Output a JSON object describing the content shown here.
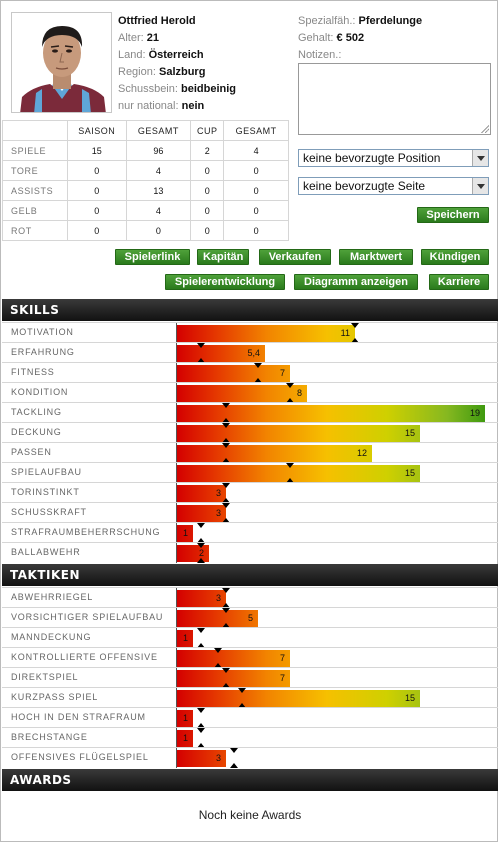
{
  "player": {
    "name": "Ottfried Herold",
    "age_label": "Alter:",
    "age": "21",
    "country_label": "Land:",
    "country": "Österreich",
    "region_label": "Region:",
    "region": "Salzburg",
    "foot_label": "Schussbein:",
    "foot": "beidbeinig",
    "national_label": "nur national:",
    "national": "nein",
    "special_label": "Spezialfäh.:",
    "special": "Pferdelunge",
    "salary_label": "Gehalt:",
    "salary": "€ 502",
    "notes_label": "Notizen.:",
    "notes_value": ""
  },
  "stats": {
    "headers": [
      "",
      "SAISON",
      "GESAMT",
      "CUP",
      "GESAMT"
    ],
    "rows": [
      {
        "label": "SPIELE",
        "values": [
          "15",
          "96",
          "2",
          "4"
        ]
      },
      {
        "label": "TORE",
        "values": [
          "0",
          "4",
          "0",
          "0"
        ]
      },
      {
        "label": "ASSISTS",
        "values": [
          "0",
          "13",
          "0",
          "0"
        ]
      },
      {
        "label": "GELB",
        "values": [
          "0",
          "4",
          "0",
          "0"
        ]
      },
      {
        "label": "ROT",
        "values": [
          "0",
          "0",
          "0",
          "0"
        ]
      }
    ]
  },
  "selects": {
    "position": "keine bevorzugte Position",
    "side": "keine bevorzugte Seite"
  },
  "buttons": {
    "save": "Speichern",
    "row1": [
      "Spielerlink",
      "Kapitän",
      "Verkaufen",
      "Marktwert",
      "Kündigen"
    ],
    "row2": [
      "Spielerentwicklung",
      "Diagramm anzeigen",
      "Karriere"
    ]
  },
  "sections": {
    "skills": "SKILLS",
    "tactics": "TAKTIKEN",
    "awards": "AWARDS",
    "awards_empty": "Noch keine Awards"
  },
  "skills": [
    {
      "label": "MOTIVATION",
      "value": "11",
      "marker": 11
    },
    {
      "label": "ERFAHRUNG",
      "value": "5,4",
      "marker": 1.5
    },
    {
      "label": "FITNESS",
      "value": "7",
      "marker": 5
    },
    {
      "label": "KONDITION",
      "value": "8",
      "marker": 7
    },
    {
      "label": "TACKLING",
      "value": "19",
      "marker": 3
    },
    {
      "label": "DECKUNG",
      "value": "15",
      "marker": 3
    },
    {
      "label": "PASSEN",
      "value": "12",
      "marker": 3
    },
    {
      "label": "SPIELAUFBAU",
      "value": "15",
      "marker": 7
    },
    {
      "label": "TORINSTINKT",
      "value": "3",
      "marker": 3
    },
    {
      "label": "SCHUSSKRAFT",
      "value": "3",
      "marker": 3
    },
    {
      "label": "STRAFRAUMBEHERRSCHUNG",
      "value": "1",
      "marker": 1.5
    },
    {
      "label": "BALLABWEHR",
      "value": "2",
      "marker": 1.5
    }
  ],
  "tactics": [
    {
      "label": "ABWEHRRIEGEL",
      "value": "3",
      "marker": 3
    },
    {
      "label": "VORSICHTIGER SPIELAUFBAU",
      "value": "5",
      "marker": 3
    },
    {
      "label": "MANNDECKUNG",
      "value": "1",
      "marker": 1.5
    },
    {
      "label": "KONTROLLIERTE OFFENSIVE",
      "value": "7",
      "marker": 2.5
    },
    {
      "label": "DIREKTSPIEL",
      "value": "7",
      "marker": 3
    },
    {
      "label": "KURZPASS SPIEL",
      "value": "15",
      "marker": 4
    },
    {
      "label": "HOCH IN DEN STRAFRAUM",
      "value": "1",
      "marker": 1.5
    },
    {
      "label": "BRECHSTANGE",
      "value": "1",
      "marker": 1.5
    },
    {
      "label": "OFFENSIVES FLÜGELSPIEL",
      "value": "3",
      "marker": 3.5
    }
  ],
  "scale_max": 19,
  "colors": {
    "button_green": "#3a8f2a",
    "header_black": "#1a1a1a",
    "bar_low": "#d40000",
    "bar_mid": "#f6c000",
    "bar_high": "#3f9a10"
  }
}
